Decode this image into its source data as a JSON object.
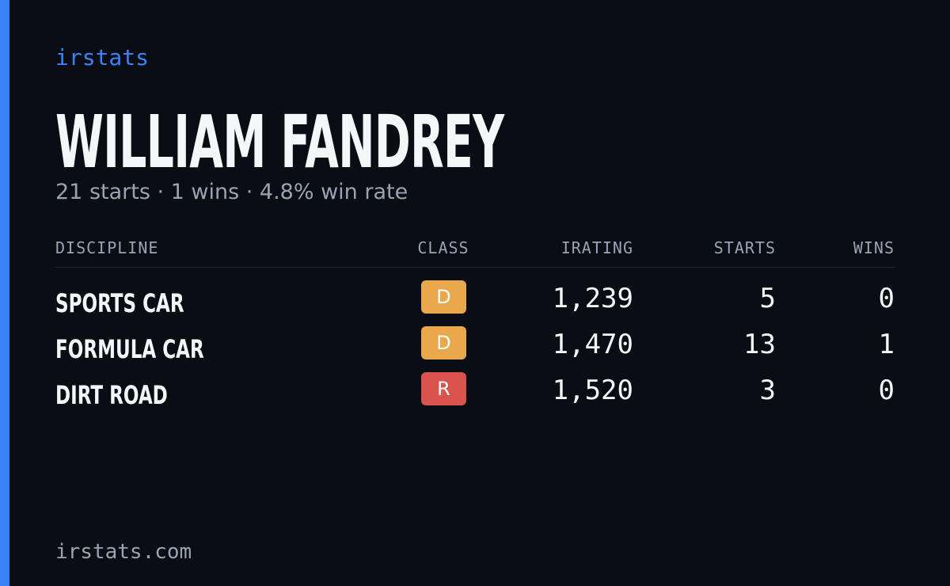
{
  "brand": "irstats",
  "driver": {
    "name": "WILLIAM FANDREY",
    "summary": "21 starts · 1 wins · 4.8% win rate"
  },
  "table": {
    "headers": [
      "DISCIPLINE",
      "CLASS",
      "IRATING",
      "STARTS",
      "WINS"
    ],
    "rows": [
      [
        "SPORTS CAR",
        "D",
        "1,239",
        "5",
        "0"
      ],
      [
        "FORMULA CAR",
        "D",
        "1,470",
        "13",
        "1"
      ],
      [
        "DIRT ROAD",
        "R",
        "1,520",
        "3",
        "0"
      ]
    ]
  },
  "footer": "irstats.com"
}
